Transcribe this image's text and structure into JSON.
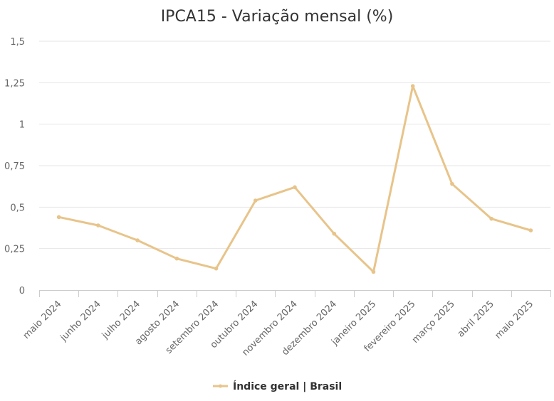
{
  "chart_data": {
    "type": "line",
    "title": "IPCA15 - Variação mensal (%)",
    "xlabel": "",
    "ylabel": "",
    "ylim": [
      0,
      1.5
    ],
    "y_ticks": [
      {
        "value": 0,
        "label": "0"
      },
      {
        "value": 0.25,
        "label": "0,25"
      },
      {
        "value": 0.5,
        "label": "0,5"
      },
      {
        "value": 0.75,
        "label": "0,75"
      },
      {
        "value": 1,
        "label": "1"
      },
      {
        "value": 1.25,
        "label": "1,25"
      },
      {
        "value": 1.5,
        "label": "1,5"
      }
    ],
    "categories": [
      "maio 2024",
      "junho 2024",
      "julho 2024",
      "agosto 2024",
      "setembro 2024",
      "outubro 2024",
      "novembro 2024",
      "dezembro 2024",
      "janeiro 2025",
      "fevereiro 2025",
      "março 2025",
      "abril 2025",
      "maio 2025"
    ],
    "series": [
      {
        "name": "Índice geral | Brasil",
        "color": "#E8C48A",
        "values": [
          0.44,
          0.39,
          0.3,
          0.19,
          0.13,
          0.54,
          0.62,
          0.34,
          0.11,
          1.23,
          0.64,
          0.43,
          0.36
        ]
      }
    ],
    "grid": true,
    "legend": "bottom-center"
  }
}
